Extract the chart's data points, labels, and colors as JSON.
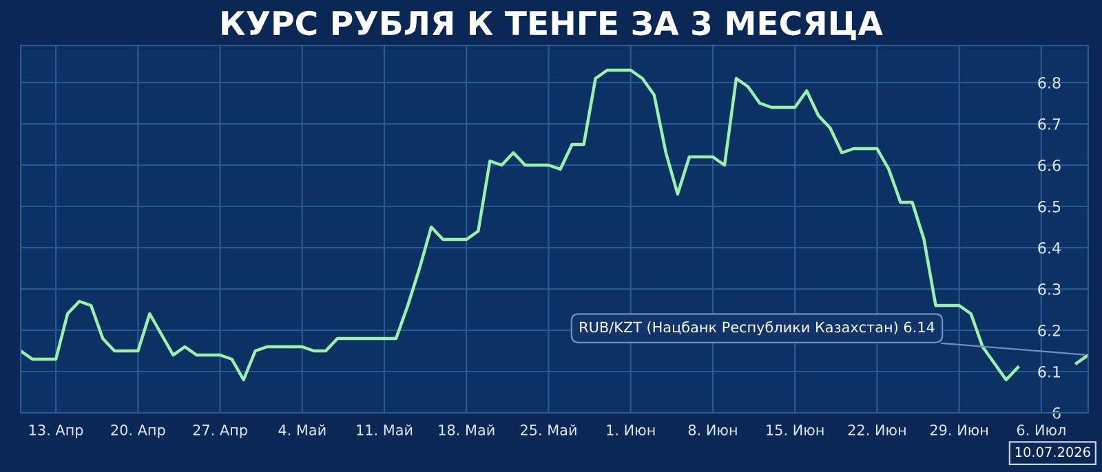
{
  "chart_data": {
    "type": "line",
    "title": "КУРС РУБЛЯ К ТЕНГЕ ЗА 3 МЕСЯЦА",
    "x": [
      "2026-04-10",
      "2026-04-11",
      "2026-04-12",
      "2026-04-13",
      "2026-04-14",
      "2026-04-15",
      "2026-04-16",
      "2026-04-17",
      "2026-04-18",
      "2026-04-19",
      "2026-04-20",
      "2026-04-21",
      "2026-04-22",
      "2026-04-23",
      "2026-04-24",
      "2026-04-25",
      "2026-04-26",
      "2026-04-27",
      "2026-04-28",
      "2026-04-29",
      "2026-04-30",
      "2026-05-01",
      "2026-05-02",
      "2026-05-03",
      "2026-05-04",
      "2026-05-05",
      "2026-05-06",
      "2026-05-07",
      "2026-05-08",
      "2026-05-09",
      "2026-05-10",
      "2026-05-11",
      "2026-05-12",
      "2026-05-13",
      "2026-05-14",
      "2026-05-15",
      "2026-05-16",
      "2026-05-17",
      "2026-05-18",
      "2026-05-19",
      "2026-05-20",
      "2026-05-21",
      "2026-05-22",
      "2026-05-23",
      "2026-05-24",
      "2026-05-25",
      "2026-05-26",
      "2026-05-27",
      "2026-05-28",
      "2026-05-29",
      "2026-05-30",
      "2026-05-31",
      "2026-06-01",
      "2026-06-02",
      "2026-06-03",
      "2026-06-04",
      "2026-06-05",
      "2026-06-06",
      "2026-06-07",
      "2026-06-08",
      "2026-06-09",
      "2026-06-10",
      "2026-06-11",
      "2026-06-12",
      "2026-06-13",
      "2026-06-14",
      "2026-06-15",
      "2026-06-16",
      "2026-06-17",
      "2026-06-18",
      "2026-06-19",
      "2026-06-20",
      "2026-06-21",
      "2026-06-22",
      "2026-06-23",
      "2026-06-24",
      "2026-06-25",
      "2026-06-26",
      "2026-06-27",
      "2026-06-28",
      "2026-06-29",
      "2026-06-30",
      "2026-07-01",
      "2026-07-02",
      "2026-07-03",
      "2026-07-04",
      "2026-07-05",
      "2026-07-06",
      "2026-07-07",
      "2026-07-08",
      "2026-07-09",
      "2026-07-10"
    ],
    "series": [
      {
        "color": "#9cf0a8",
        "values": [
          6.15,
          6.13,
          6.13,
          6.13,
          6.24,
          6.27,
          6.26,
          6.18,
          6.15,
          6.15,
          6.15,
          6.24,
          6.19,
          6.14,
          6.16,
          6.14,
          6.14,
          6.14,
          6.13,
          6.08,
          6.15,
          6.16,
          6.16,
          6.16,
          6.16,
          6.15,
          6.15,
          6.18,
          6.18,
          6.18,
          6.18,
          6.18,
          6.18,
          6.26,
          6.35,
          6.45,
          6.42,
          6.42,
          6.42,
          6.44,
          6.61,
          6.6,
          6.63,
          6.6,
          6.6,
          6.6,
          6.59,
          6.65,
          6.65,
          6.81,
          6.83,
          6.83,
          6.83,
          6.81,
          6.77,
          6.63,
          6.53,
          6.62,
          6.62,
          6.62,
          6.6,
          6.81,
          6.79,
          6.75,
          6.74,
          6.74,
          6.74,
          6.78,
          6.72,
          6.69,
          6.63,
          6.64,
          6.64,
          6.64,
          6.59,
          6.51,
          6.51,
          6.42,
          6.26,
          6.26,
          6.26,
          6.24,
          6.16,
          6.12,
          6.08,
          6.11,
          null,
          null,
          null,
          null,
          6.12,
          6.14
        ]
      }
    ],
    "xlim": [
      "2026-04-10",
      "2026-07-10"
    ],
    "xticks": [
      {
        "value": "2026-04-13",
        "label": "13. Апр"
      },
      {
        "value": "2026-04-20",
        "label": "20. Апр"
      },
      {
        "value": "2026-04-27",
        "label": "27. Апр"
      },
      {
        "value": "2026-05-04",
        "label": "4. Май"
      },
      {
        "value": "2026-05-11",
        "label": "11. Май"
      },
      {
        "value": "2026-05-18",
        "label": "18. Май"
      },
      {
        "value": "2026-05-25",
        "label": "25. Май"
      },
      {
        "value": "2026-06-01",
        "label": "1. Июн"
      },
      {
        "value": "2026-06-08",
        "label": "8. Июн"
      },
      {
        "value": "2026-06-15",
        "label": "15. Июн"
      },
      {
        "value": "2026-06-22",
        "label": "22. Июн"
      },
      {
        "value": "2026-06-29",
        "label": "29. Июн"
      },
      {
        "value": "2026-07-06",
        "label": "6. Июл"
      }
    ],
    "ylim": [
      6.0,
      6.89
    ],
    "yticks": [
      6,
      6.1,
      6.2,
      6.3,
      6.4,
      6.5,
      6.6,
      6.7,
      6.8
    ],
    "grid": true,
    "marker": "none",
    "line_style": "solid",
    "annotations": [
      {
        "text": "RUB/KZT (Нацбанк Республики Казахстан) 6.14",
        "x": "2026-07-10",
        "y": 6.14
      },
      "10.07.2026"
    ]
  }
}
